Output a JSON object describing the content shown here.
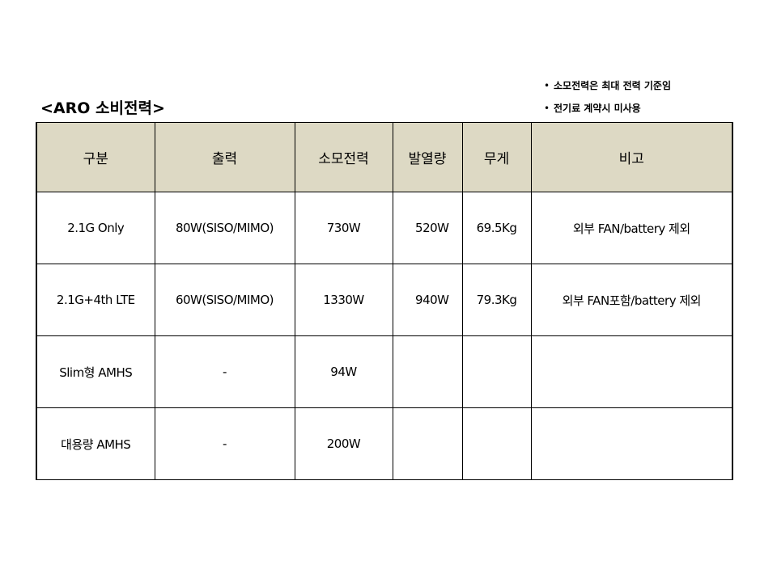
{
  "title": "<ARO 소비전력>",
  "notes": [
    "소모전력은 최대 전력 기준임",
    "전기료 계약시 미사용"
  ],
  "table": {
    "headers": [
      "구분",
      "출력",
      "소모전력",
      "발열량",
      "무게",
      "비고"
    ],
    "rows": [
      [
        "2.1G Only",
        "80W(SISO/MIMO)",
        "730W",
        "520W",
        "69.5Kg",
        "외부 FAN/battery 제외"
      ],
      [
        "2.1G+4th LTE",
        "60W(SISO/MIMO)",
        "1330W",
        "940W",
        "79.3Kg",
        "외부 FAN포함/battery 제외"
      ],
      [
        "Slim형 AMHS",
        "-",
        "94W",
        "",
        "",
        ""
      ],
      [
        "대용량 AMHS",
        "-",
        "200W",
        "",
        "",
        ""
      ]
    ],
    "header_bg": "#ddd9c4"
  }
}
